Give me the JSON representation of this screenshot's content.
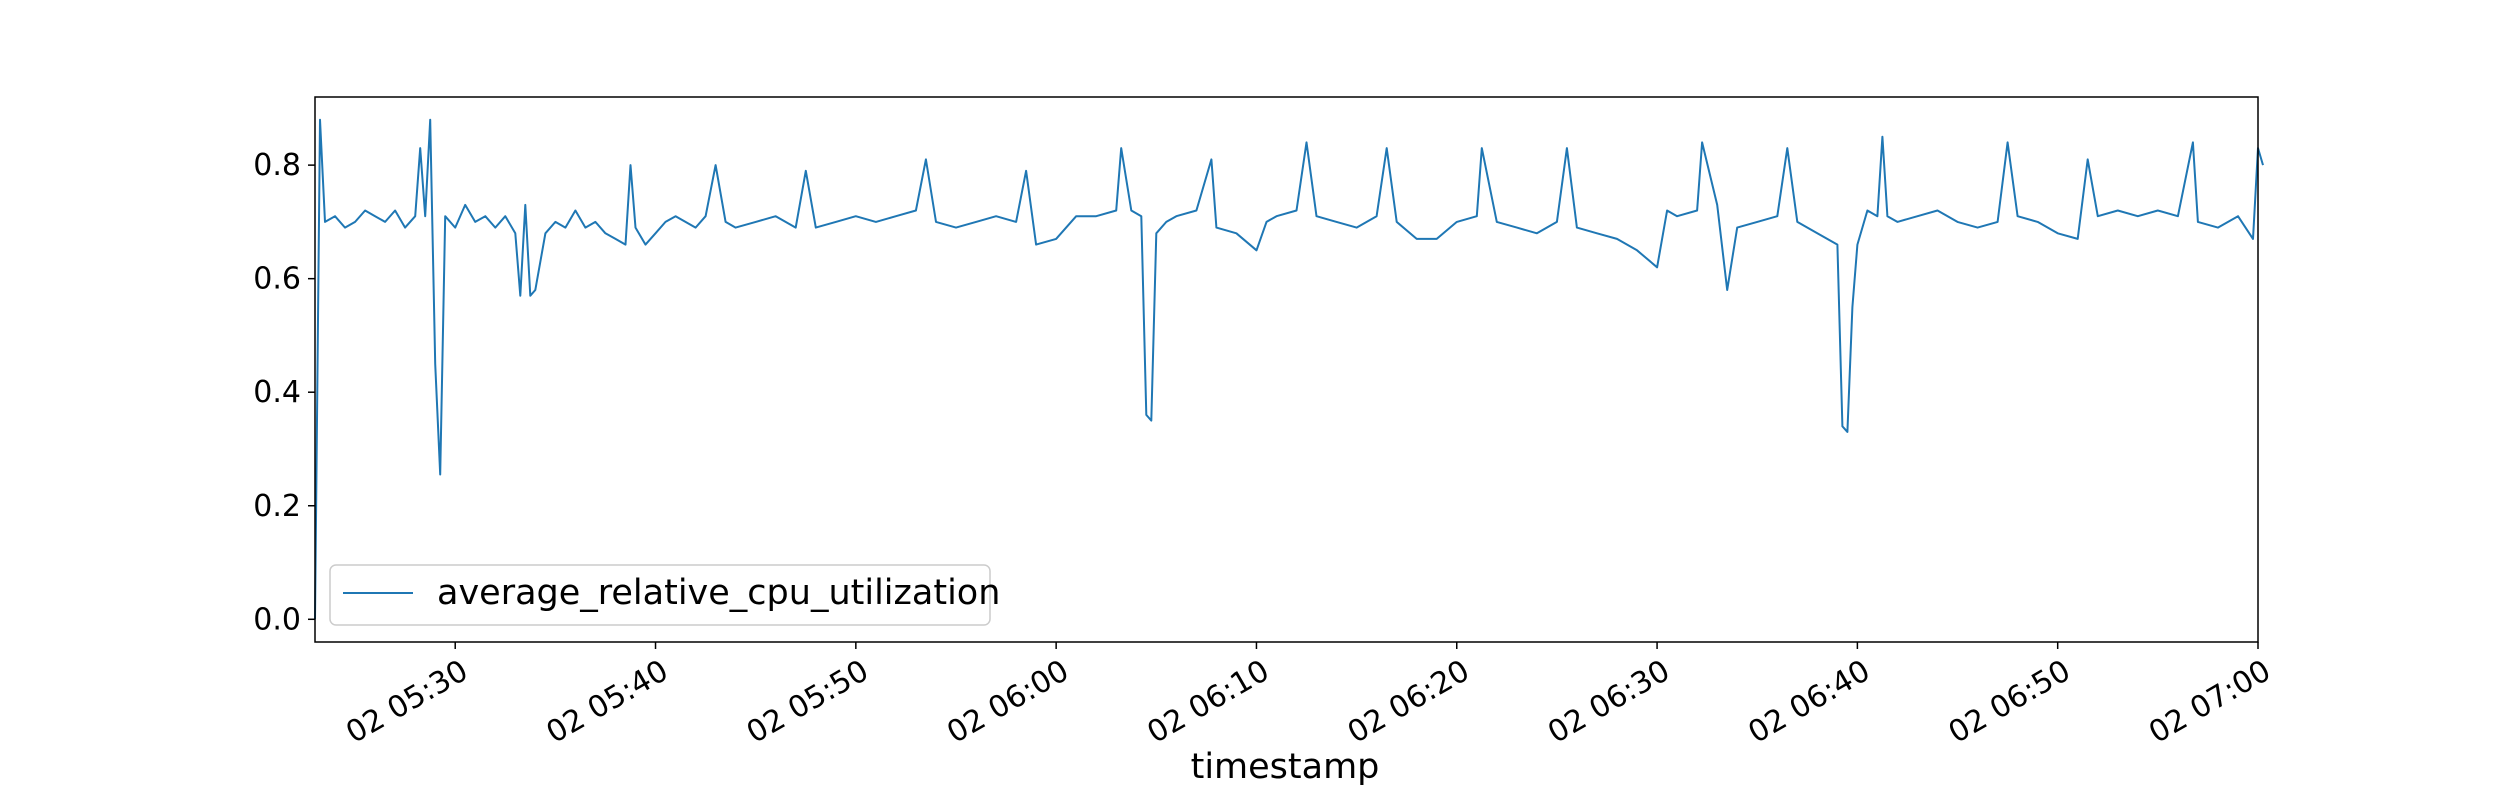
{
  "chart_data": {
    "type": "line",
    "title": "",
    "xlabel": "timestamp",
    "ylabel": "",
    "x_ticks": [
      "02 05:30",
      "02 05:40",
      "02 05:50",
      "02 06:00",
      "02 06:10",
      "02 06:20",
      "02 06:30",
      "02 06:40",
      "02 06:50",
      "02 07:00"
    ],
    "y_ticks": [
      "0.0",
      "0.2",
      "0.4",
      "0.6",
      "0.8"
    ],
    "ylim": [
      -0.04,
      0.92
    ],
    "xlim": [
      "02 05:23",
      "02 07:00"
    ],
    "grid": false,
    "legend": {
      "position": "lower-left",
      "entries": [
        "average_relative_cpu_utilization"
      ]
    },
    "series": [
      {
        "name": "average_relative_cpu_utilization",
        "color": "#1f77b4",
        "points": [
          [
            "05:23:00",
            0.0
          ],
          [
            "05:23:15",
            0.88
          ],
          [
            "05:23:30",
            0.7
          ],
          [
            "05:24:00",
            0.71
          ],
          [
            "05:24:30",
            0.69
          ],
          [
            "05:25:00",
            0.7
          ],
          [
            "05:25:30",
            0.72
          ],
          [
            "05:26:00",
            0.71
          ],
          [
            "05:26:30",
            0.7
          ],
          [
            "05:27:00",
            0.72
          ],
          [
            "05:27:30",
            0.69
          ],
          [
            "05:28:00",
            0.71
          ],
          [
            "05:28:15",
            0.83
          ],
          [
            "05:28:30",
            0.71
          ],
          [
            "05:28:45",
            0.88
          ],
          [
            "05:29:00",
            0.45
          ],
          [
            "05:29:15",
            0.255
          ],
          [
            "05:29:30",
            0.71
          ],
          [
            "05:30:00",
            0.69
          ],
          [
            "05:30:30",
            0.73
          ],
          [
            "05:31:00",
            0.7
          ],
          [
            "05:31:30",
            0.71
          ],
          [
            "05:32:00",
            0.69
          ],
          [
            "05:32:30",
            0.71
          ],
          [
            "05:33:00",
            0.68
          ],
          [
            "05:33:15",
            0.57
          ],
          [
            "05:33:30",
            0.73
          ],
          [
            "05:33:45",
            0.57
          ],
          [
            "05:34:00",
            0.58
          ],
          [
            "05:34:30",
            0.68
          ],
          [
            "05:35:00",
            0.7
          ],
          [
            "05:35:30",
            0.69
          ],
          [
            "05:36:00",
            0.72
          ],
          [
            "05:36:30",
            0.69
          ],
          [
            "05:37:00",
            0.7
          ],
          [
            "05:37:30",
            0.68
          ],
          [
            "05:38:00",
            0.67
          ],
          [
            "05:38:30",
            0.66
          ],
          [
            "05:38:45",
            0.8
          ],
          [
            "05:39:00",
            0.69
          ],
          [
            "05:39:30",
            0.66
          ],
          [
            "05:40:00",
            0.68
          ],
          [
            "05:40:30",
            0.7
          ],
          [
            "05:41:00",
            0.71
          ],
          [
            "05:42:00",
            0.69
          ],
          [
            "05:42:30",
            0.71
          ],
          [
            "05:43:00",
            0.8
          ],
          [
            "05:43:30",
            0.7
          ],
          [
            "05:44:00",
            0.69
          ],
          [
            "05:45:00",
            0.7
          ],
          [
            "05:46:00",
            0.71
          ],
          [
            "05:47:00",
            0.69
          ],
          [
            "05:47:30",
            0.79
          ],
          [
            "05:48:00",
            0.69
          ],
          [
            "05:49:00",
            0.7
          ],
          [
            "05:50:00",
            0.71
          ],
          [
            "05:51:00",
            0.7
          ],
          [
            "05:52:00",
            0.71
          ],
          [
            "05:53:00",
            0.72
          ],
          [
            "05:53:30",
            0.81
          ],
          [
            "05:54:00",
            0.7
          ],
          [
            "05:55:00",
            0.69
          ],
          [
            "05:56:00",
            0.7
          ],
          [
            "05:57:00",
            0.71
          ],
          [
            "05:58:00",
            0.7
          ],
          [
            "05:58:30",
            0.79
          ],
          [
            "05:59:00",
            0.66
          ],
          [
            "06:00:00",
            0.67
          ],
          [
            "06:01:00",
            0.71
          ],
          [
            "06:02:00",
            0.71
          ],
          [
            "06:03:00",
            0.72
          ],
          [
            "06:03:15",
            0.83
          ],
          [
            "06:03:45",
            0.72
          ],
          [
            "06:04:15",
            0.71
          ],
          [
            "06:04:30",
            0.36
          ],
          [
            "06:04:45",
            0.35
          ],
          [
            "06:05:00",
            0.68
          ],
          [
            "06:05:30",
            0.7
          ],
          [
            "06:06:00",
            0.71
          ],
          [
            "06:07:00",
            0.72
          ],
          [
            "06:07:45",
            0.81
          ],
          [
            "06:08:00",
            0.69
          ],
          [
            "06:09:00",
            0.68
          ],
          [
            "06:10:00",
            0.65
          ],
          [
            "06:10:30",
            0.7
          ],
          [
            "06:11:00",
            0.71
          ],
          [
            "06:12:00",
            0.72
          ],
          [
            "06:12:30",
            0.84
          ],
          [
            "06:13:00",
            0.71
          ],
          [
            "06:14:00",
            0.7
          ],
          [
            "06:15:00",
            0.69
          ],
          [
            "06:16:00",
            0.71
          ],
          [
            "06:16:30",
            0.83
          ],
          [
            "06:17:00",
            0.7
          ],
          [
            "06:18:00",
            0.67
          ],
          [
            "06:19:00",
            0.67
          ],
          [
            "06:20:00",
            0.7
          ],
          [
            "06:21:00",
            0.71
          ],
          [
            "06:21:15",
            0.83
          ],
          [
            "06:22:00",
            0.7
          ],
          [
            "06:23:00",
            0.69
          ],
          [
            "06:24:00",
            0.68
          ],
          [
            "06:25:00",
            0.7
          ],
          [
            "06:25:30",
            0.83
          ],
          [
            "06:26:00",
            0.69
          ],
          [
            "06:27:00",
            0.68
          ],
          [
            "06:28:00",
            0.67
          ],
          [
            "06:29:00",
            0.65
          ],
          [
            "06:30:00",
            0.62
          ],
          [
            "06:30:30",
            0.72
          ],
          [
            "06:31:00",
            0.71
          ],
          [
            "06:32:00",
            0.72
          ],
          [
            "06:32:15",
            0.84
          ],
          [
            "06:33:00",
            0.73
          ],
          [
            "06:33:30",
            0.58
          ],
          [
            "06:34:00",
            0.69
          ],
          [
            "06:35:00",
            0.7
          ],
          [
            "06:36:00",
            0.71
          ],
          [
            "06:36:30",
            0.83
          ],
          [
            "06:37:00",
            0.7
          ],
          [
            "06:38:00",
            0.68
          ],
          [
            "06:39:00",
            0.66
          ],
          [
            "06:39:15",
            0.34
          ],
          [
            "06:39:30",
            0.33
          ],
          [
            "06:39:45",
            0.55
          ],
          [
            "06:40:00",
            0.66
          ],
          [
            "06:40:30",
            0.72
          ],
          [
            "06:41:00",
            0.71
          ],
          [
            "06:41:15",
            0.85
          ],
          [
            "06:41:30",
            0.71
          ],
          [
            "06:42:00",
            0.7
          ],
          [
            "06:43:00",
            0.71
          ],
          [
            "06:44:00",
            0.72
          ],
          [
            "06:45:00",
            0.7
          ],
          [
            "06:46:00",
            0.69
          ],
          [
            "06:47:00",
            0.7
          ],
          [
            "06:47:30",
            0.84
          ],
          [
            "06:48:00",
            0.71
          ],
          [
            "06:49:00",
            0.7
          ],
          [
            "06:50:00",
            0.68
          ],
          [
            "06:51:00",
            0.67
          ],
          [
            "06:51:30",
            0.81
          ],
          [
            "06:52:00",
            0.71
          ],
          [
            "06:53:00",
            0.72
          ],
          [
            "06:54:00",
            0.71
          ],
          [
            "06:55:00",
            0.72
          ],
          [
            "06:56:00",
            0.71
          ],
          [
            "06:56:45",
            0.84
          ],
          [
            "06:57:00",
            0.7
          ],
          [
            "06:58:00",
            0.69
          ],
          [
            "06:59:00",
            0.71
          ],
          [
            "06:59:45",
            0.67
          ],
          [
            "07:00:00",
            0.83
          ],
          [
            "07:00:15",
            0.8
          ]
        ]
      }
    ]
  }
}
